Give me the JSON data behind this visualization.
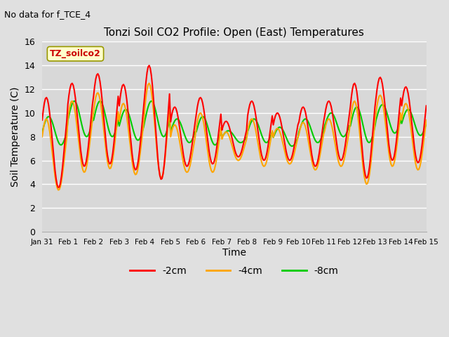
{
  "title": "Tonzi Soil CO2 Profile: Open (East) Temperatures",
  "subtitle": "No data for f_TCE_4",
  "ylabel": "Soil Temperature (C)",
  "xlabel": "Time",
  "ylim": [
    0,
    16
  ],
  "yticks": [
    0,
    2,
    4,
    6,
    8,
    10,
    12,
    14,
    16
  ],
  "xtick_labels": [
    "Jan 31",
    "Feb 1",
    "Feb 2",
    "Feb 3",
    "Feb 4",
    "Feb 5",
    "Feb 6",
    "Feb 7",
    "Feb 8",
    "Feb 9",
    "Feb 10",
    "Feb 11",
    "Feb 12",
    "Feb 13",
    "Feb 14",
    "Feb 15"
  ],
  "legend_labels": [
    "-2cm",
    "-4cm",
    "-8cm"
  ],
  "legend_colors": [
    "#ff0000",
    "#ffa500",
    "#00cc00"
  ],
  "inset_label": "TZ_soilco2",
  "bg_color": "#e0e0e0",
  "plot_bg_color": "#d8d8d8",
  "grid_color": "#ffffff",
  "line_width": 1.5,
  "days": 15,
  "pts_per_day": 24,
  "s2cm_means": [
    7.5,
    9.0,
    9.5,
    8.8,
    9.2,
    8.0,
    8.5,
    7.8,
    8.5,
    8.0,
    8.0,
    8.5,
    8.5,
    9.5,
    9.0
  ],
  "s2cm_amps": [
    3.8,
    3.5,
    3.8,
    3.6,
    4.8,
    2.5,
    2.8,
    1.5,
    2.5,
    2.0,
    2.5,
    2.5,
    4.0,
    3.5,
    3.2
  ],
  "s4cm_means": [
    6.5,
    8.0,
    8.5,
    7.8,
    8.5,
    7.0,
    7.5,
    7.2,
    7.5,
    7.2,
    7.2,
    7.5,
    7.5,
    8.5,
    8.0
  ],
  "s4cm_amps": [
    3.0,
    3.0,
    3.2,
    3.0,
    4.0,
    2.0,
    2.5,
    1.2,
    2.0,
    1.5,
    2.0,
    2.0,
    3.5,
    3.0,
    2.8
  ],
  "s8cm_means": [
    8.5,
    9.5,
    9.5,
    9.0,
    9.5,
    8.5,
    8.5,
    8.0,
    8.5,
    8.0,
    8.5,
    9.0,
    9.0,
    9.5,
    9.2
  ],
  "s8cm_amps": [
    1.2,
    1.5,
    1.5,
    1.3,
    1.5,
    1.0,
    1.2,
    0.5,
    1.0,
    0.8,
    1.0,
    1.0,
    1.5,
    1.2,
    1.1
  ]
}
